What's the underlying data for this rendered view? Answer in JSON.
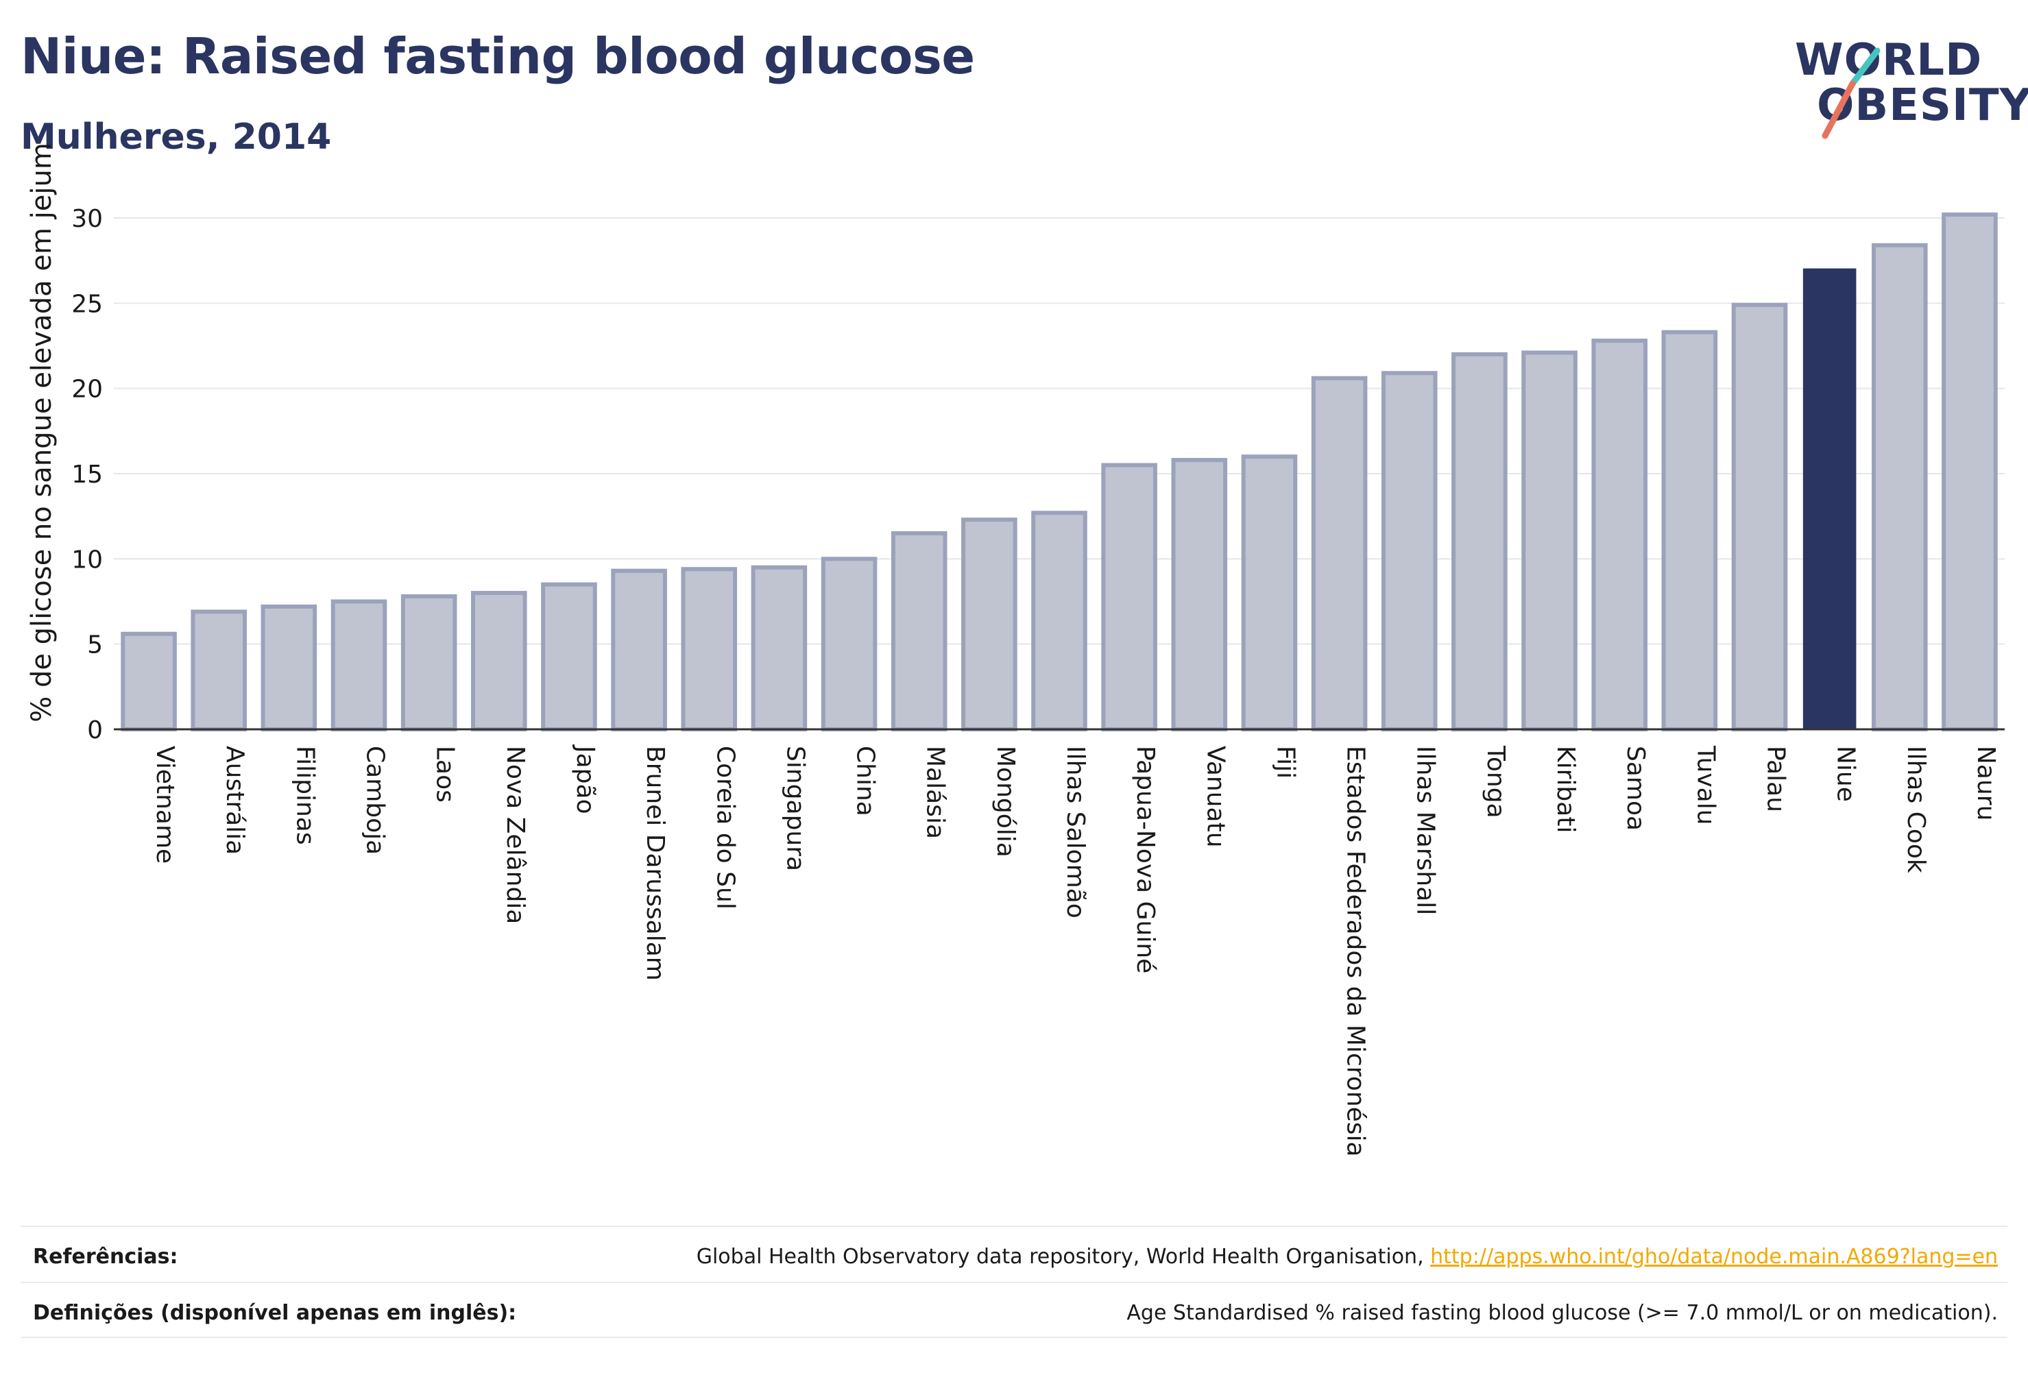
{
  "header": {
    "title": "Niue: Raised fasting blood glucose",
    "subtitle": "Mulheres, 2014"
  },
  "logo": {
    "line1": "WORLD",
    "line2": "OBESITY",
    "stroke_colors": [
      "#45c4c0",
      "#e8735c"
    ]
  },
  "colors": {
    "bar_default": "#c0c4d1",
    "bar_default_stroke": "#9ba2bb",
    "bar_highlight": "#2b3561",
    "grid": "#e4e6ee",
    "axis": "#333333"
  },
  "chart_data": {
    "type": "bar",
    "ylabel": "% de glicose no sangue elevada em jejum",
    "ylim": [
      0,
      30.5
    ],
    "yticks": [
      0,
      5,
      10,
      15,
      20,
      25,
      30
    ],
    "grid": true,
    "highlight": "Niue",
    "categories": [
      "Vietname",
      "Austrália",
      "Filipinas",
      "Camboja",
      "Laos",
      "Nova Zelândia",
      "Japão",
      "Brunei Darussalam",
      "Coreia do Sul",
      "Singapura",
      "China",
      "Malásia",
      "Mongólia",
      "Ilhas Salomão",
      "Papua-Nova Guiné",
      "Vanuatu",
      "Fiji",
      "Estados Federados da Micronésia",
      "Ilhas Marshall",
      "Tonga",
      "Kiribati",
      "Samoa",
      "Tuvalu",
      "Palau",
      "Niue",
      "Ilhas Cook",
      "Nauru"
    ],
    "values": [
      5.6,
      6.9,
      7.2,
      7.5,
      7.8,
      8.0,
      8.5,
      9.3,
      9.4,
      9.5,
      10.0,
      11.5,
      12.3,
      12.7,
      15.5,
      15.8,
      16.0,
      20.6,
      20.9,
      22.0,
      22.1,
      22.8,
      23.3,
      24.9,
      27.0,
      28.4,
      30.2
    ]
  },
  "footer": {
    "references_label": "Referências:",
    "references_text": "Global Health Observatory data repository, World Health Organisation, ",
    "references_link": "http://apps.who.int/gho/data/node.main.A869?lang=en",
    "definitions_label": "Definições (disponível apenas em inglês):",
    "definitions_text": "Age Standardised % raised fasting blood glucose (>= 7.0 mmol/L or on medication)."
  }
}
